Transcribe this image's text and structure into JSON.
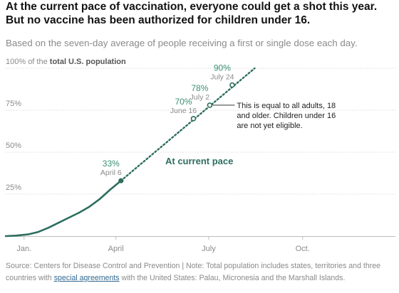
{
  "headline": "At the current pace of vaccination, everyone could get a shot this year. But no vaccine has been authorized for children under 16.",
  "subhead": "Based on the seven-day average of people receiving a first or single dose each day.",
  "source": {
    "prefix": "Source: Centers for Disease Control and Prevention | Note: Total population includes states, territories and three countries with ",
    "link_text": "special agreements",
    "suffix": " with the United States: Palau, Micronesia and the Marshall Islands."
  },
  "colors": {
    "series": "#2d6e5f",
    "gridline": "#d9d9d9",
    "axis_text": "#8a8a8a",
    "label_pct": "#3a8f73"
  },
  "chart_data": {
    "type": "line",
    "y_axis": {
      "range": [
        0,
        100
      ],
      "ticks": [
        {
          "value": 25,
          "label": "25%"
        },
        {
          "value": 50,
          "label": "50%"
        },
        {
          "value": 75,
          "label": "75%"
        },
        {
          "value": 100,
          "label_prefix": "100% of the ",
          "label_bold": "total U.S. population"
        }
      ],
      "grid": true
    },
    "x_axis": {
      "range": [
        "2020-12-14",
        "2021-12-31"
      ],
      "ticks": [
        {
          "date": "2021-01-01",
          "label": "Jan."
        },
        {
          "date": "2021-04-01",
          "label": "April"
        },
        {
          "date": "2021-07-01",
          "label": "July"
        },
        {
          "date": "2021-10-01",
          "label": "Oct."
        }
      ]
    },
    "series": [
      {
        "style": "solid",
        "points": [
          {
            "x": "2020-12-14",
            "y": 0
          },
          {
            "x": "2020-12-24",
            "y": 0.3
          },
          {
            "x": "2021-01-05",
            "y": 1
          },
          {
            "x": "2021-01-15",
            "y": 2.5
          },
          {
            "x": "2021-01-25",
            "y": 5
          },
          {
            "x": "2021-02-04",
            "y": 8
          },
          {
            "x": "2021-02-14",
            "y": 11
          },
          {
            "x": "2021-02-24",
            "y": 14
          },
          {
            "x": "2021-03-06",
            "y": 17.5
          },
          {
            "x": "2021-03-16",
            "y": 22
          },
          {
            "x": "2021-03-26",
            "y": 27.5
          },
          {
            "x": "2021-04-06",
            "y": 33
          }
        ]
      },
      {
        "name": "At current pace",
        "style": "dotted",
        "points": [
          {
            "x": "2021-04-06",
            "y": 33
          },
          {
            "x": "2021-08-15",
            "y": 100
          }
        ]
      }
    ],
    "annotations": [
      {
        "date": "2021-04-06",
        "value": 33,
        "pct": "33%",
        "label": "April 6"
      },
      {
        "date": "2021-06-16",
        "value": 70,
        "pct": "70%",
        "label": "June 16"
      },
      {
        "date": "2021-07-02",
        "value": 78,
        "pct": "78%",
        "label": "July 2"
      },
      {
        "date": "2021-07-24",
        "value": 90,
        "pct": "90%",
        "label": "July 24"
      }
    ],
    "callout": {
      "date": "2021-07-02",
      "value": 78,
      "lines": [
        "This is equal to all adults, 18",
        "and older. Children under 16",
        "are not yet eligible."
      ]
    },
    "series_label": "At current pace"
  }
}
